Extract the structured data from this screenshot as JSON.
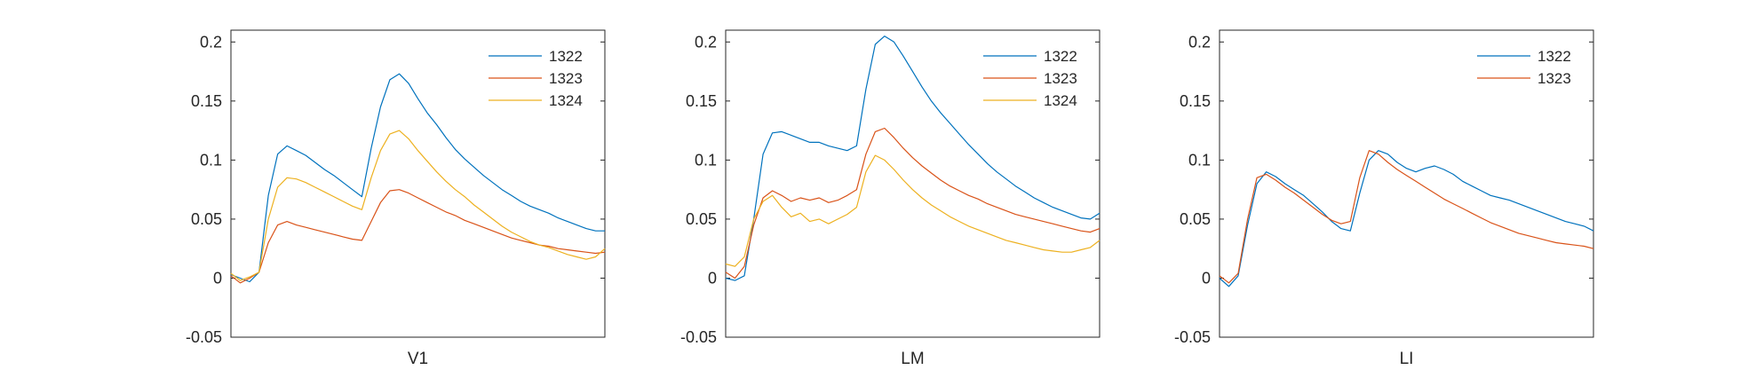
{
  "chart_data": [
    {
      "type": "line",
      "xlabel": "V1",
      "ylim": [
        -0.05,
        0.21
      ],
      "yticks": [
        -0.05,
        0,
        0.05,
        0.1,
        0.15,
        0.2
      ],
      "ytick_labels": [
        "-0.05",
        "0",
        "0.05",
        "0.1",
        "0.15",
        "0.2"
      ],
      "grid": false,
      "legend_position": "top-right",
      "series": [
        {
          "name": "1322",
          "color": "#0072BD",
          "values": [
            0.003,
            0.0,
            -0.003,
            0.005,
            0.07,
            0.105,
            0.112,
            0.108,
            0.104,
            0.098,
            0.092,
            0.087,
            0.081,
            0.075,
            0.069,
            0.11,
            0.145,
            0.168,
            0.173,
            0.165,
            0.152,
            0.14,
            0.13,
            0.119,
            0.109,
            0.101,
            0.094,
            0.087,
            0.081,
            0.075,
            0.07,
            0.065,
            0.061,
            0.058,
            0.055,
            0.051,
            0.048,
            0.045,
            0.042,
            0.04,
            0.04
          ]
        },
        {
          "name": "1323",
          "color": "#D95319",
          "values": [
            0.002,
            -0.004,
            0.0,
            0.005,
            0.03,
            0.045,
            0.048,
            0.045,
            0.043,
            0.041,
            0.039,
            0.037,
            0.035,
            0.033,
            0.032,
            0.048,
            0.064,
            0.074,
            0.075,
            0.072,
            0.068,
            0.064,
            0.06,
            0.056,
            0.053,
            0.049,
            0.046,
            0.043,
            0.04,
            0.037,
            0.034,
            0.032,
            0.03,
            0.028,
            0.027,
            0.025,
            0.024,
            0.023,
            0.022,
            0.021,
            0.022
          ]
        },
        {
          "name": "1324",
          "color": "#EDB120",
          "values": [
            0.004,
            -0.002,
            0.001,
            0.005,
            0.05,
            0.077,
            0.085,
            0.084,
            0.081,
            0.077,
            0.073,
            0.069,
            0.065,
            0.061,
            0.058,
            0.085,
            0.108,
            0.122,
            0.125,
            0.118,
            0.108,
            0.099,
            0.09,
            0.082,
            0.075,
            0.069,
            0.062,
            0.056,
            0.05,
            0.044,
            0.039,
            0.035,
            0.031,
            0.028,
            0.026,
            0.023,
            0.02,
            0.018,
            0.016,
            0.018,
            0.025
          ]
        }
      ]
    },
    {
      "type": "line",
      "xlabel": "LM",
      "ylim": [
        -0.05,
        0.21
      ],
      "yticks": [
        -0.05,
        0,
        0.05,
        0.1,
        0.15,
        0.2
      ],
      "ytick_labels": [
        "-0.05",
        "0",
        "0.05",
        "0.1",
        "0.15",
        "0.2"
      ],
      "grid": false,
      "legend_position": "top-right",
      "series": [
        {
          "name": "1322",
          "color": "#0072BD",
          "values": [
            0.0,
            -0.002,
            0.002,
            0.05,
            0.105,
            0.123,
            0.124,
            0.121,
            0.118,
            0.115,
            0.115,
            0.112,
            0.11,
            0.108,
            0.112,
            0.16,
            0.198,
            0.205,
            0.2,
            0.188,
            0.175,
            0.162,
            0.15,
            0.14,
            0.131,
            0.122,
            0.113,
            0.105,
            0.097,
            0.09,
            0.084,
            0.078,
            0.073,
            0.068,
            0.064,
            0.06,
            0.057,
            0.054,
            0.051,
            0.05,
            0.055
          ]
        },
        {
          "name": "1323",
          "color": "#D95319",
          "values": [
            0.005,
            0.0,
            0.01,
            0.045,
            0.068,
            0.074,
            0.07,
            0.065,
            0.068,
            0.066,
            0.068,
            0.064,
            0.066,
            0.07,
            0.075,
            0.105,
            0.124,
            0.127,
            0.119,
            0.11,
            0.102,
            0.095,
            0.089,
            0.083,
            0.078,
            0.074,
            0.07,
            0.067,
            0.063,
            0.06,
            0.057,
            0.054,
            0.052,
            0.05,
            0.048,
            0.046,
            0.044,
            0.042,
            0.04,
            0.039,
            0.042
          ]
        },
        {
          "name": "1324",
          "color": "#EDB120",
          "values": [
            0.012,
            0.01,
            0.018,
            0.05,
            0.065,
            0.07,
            0.06,
            0.052,
            0.055,
            0.048,
            0.05,
            0.046,
            0.05,
            0.054,
            0.06,
            0.09,
            0.104,
            0.1,
            0.092,
            0.083,
            0.075,
            0.068,
            0.062,
            0.057,
            0.052,
            0.048,
            0.044,
            0.041,
            0.038,
            0.035,
            0.032,
            0.03,
            0.028,
            0.026,
            0.024,
            0.023,
            0.022,
            0.022,
            0.024,
            0.026,
            0.032
          ]
        }
      ]
    },
    {
      "type": "line",
      "xlabel": "LI",
      "ylim": [
        -0.05,
        0.21
      ],
      "yticks": [
        -0.05,
        0,
        0.05,
        0.1,
        0.15,
        0.2
      ],
      "ytick_labels": [
        "-0.05",
        "0",
        "0.05",
        "0.1",
        "0.15",
        "0.2"
      ],
      "grid": false,
      "legend_position": "top-right",
      "series": [
        {
          "name": "1322",
          "color": "#0072BD",
          "values": [
            0.0,
            -0.007,
            0.002,
            0.045,
            0.08,
            0.09,
            0.086,
            0.08,
            0.075,
            0.07,
            0.063,
            0.056,
            0.048,
            0.042,
            0.04,
            0.072,
            0.1,
            0.108,
            0.105,
            0.098,
            0.093,
            0.09,
            0.093,
            0.095,
            0.092,
            0.088,
            0.082,
            0.078,
            0.074,
            0.07,
            0.068,
            0.066,
            0.063,
            0.06,
            0.057,
            0.054,
            0.051,
            0.048,
            0.046,
            0.044,
            0.04
          ]
        },
        {
          "name": "1323",
          "color": "#D95319",
          "values": [
            0.002,
            -0.004,
            0.004,
            0.05,
            0.085,
            0.088,
            0.083,
            0.077,
            0.072,
            0.066,
            0.06,
            0.054,
            0.049,
            0.046,
            0.048,
            0.085,
            0.108,
            0.105,
            0.098,
            0.092,
            0.087,
            0.082,
            0.077,
            0.072,
            0.067,
            0.063,
            0.059,
            0.055,
            0.051,
            0.047,
            0.044,
            0.041,
            0.038,
            0.036,
            0.034,
            0.032,
            0.03,
            0.029,
            0.028,
            0.027,
            0.025
          ]
        }
      ]
    }
  ]
}
